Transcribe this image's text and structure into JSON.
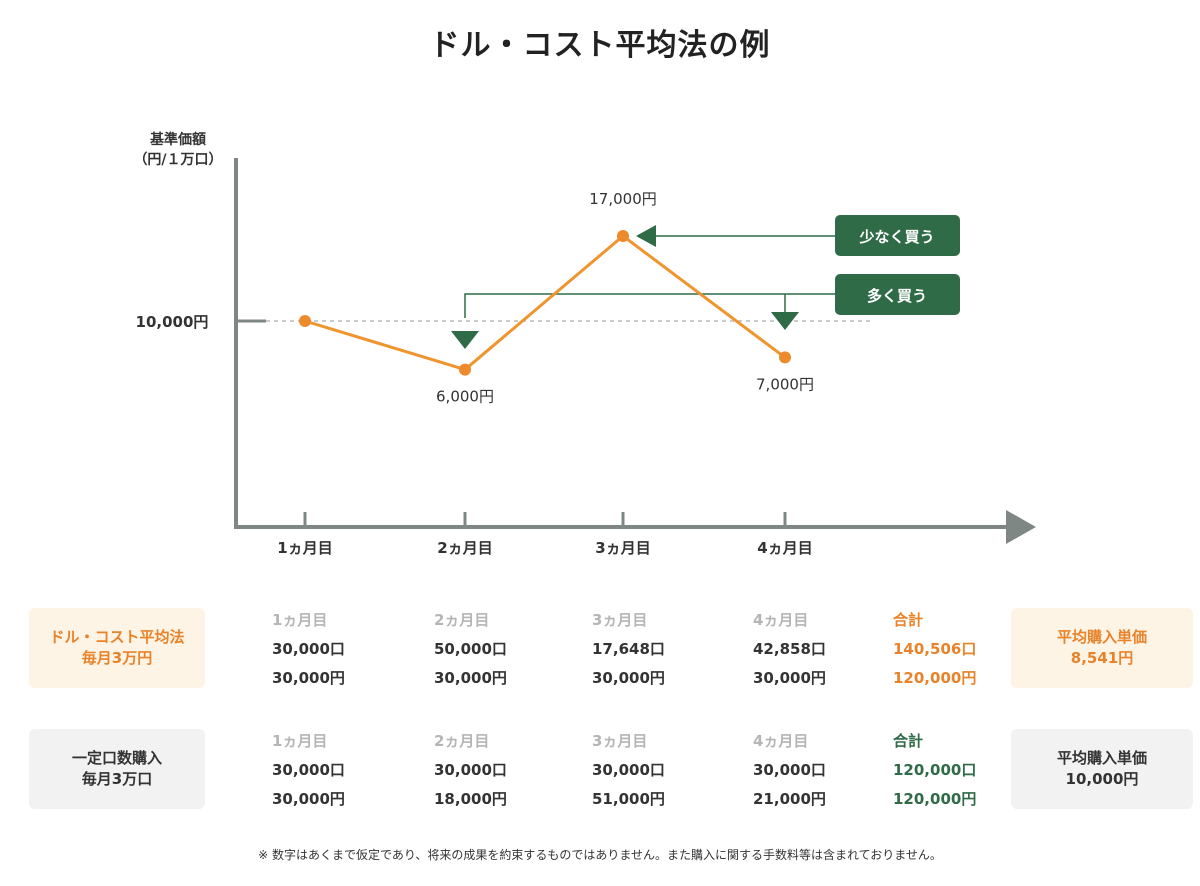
{
  "title": "ドル・コスト平均法の例",
  "chart_data": {
    "type": "line",
    "ylabel_lines": [
      "基準価額",
      "（円/１万口）"
    ],
    "categories": [
      "1ヵ月目",
      "2ヵ月目",
      "3ヵ月目",
      "4ヵ月目"
    ],
    "values": [
      10000,
      6000,
      17000,
      7000
    ],
    "reference_line": {
      "value": 10000,
      "label": "10,000円"
    },
    "point_labels": [
      "",
      "6,000円",
      "17,000円",
      "7,000円"
    ],
    "annotations": [
      {
        "label": "少なく買う",
        "targets": [
          "3ヵ月目"
        ]
      },
      {
        "label": "多く買う",
        "targets": [
          "2ヵ月目",
          "4ヵ月目"
        ]
      }
    ],
    "colors": {
      "line": "#f0942e",
      "point": "#ec8a2c",
      "axis": "#7f8784",
      "annotation": "#2f6b47",
      "reference": "#b9b9b9"
    }
  },
  "table": {
    "month_headers": [
      "1ヵ月目",
      "2ヵ月目",
      "3ヵ月目",
      "4ヵ月目"
    ],
    "total_header": "合計",
    "avg_title": "平均購入単価",
    "rows": [
      {
        "label_lines": [
          "ドル・コスト平均法",
          "毎月3万円"
        ],
        "units": [
          "30,000口",
          "50,000口",
          "17,648口",
          "42,858口"
        ],
        "amounts": [
          "30,000円",
          "30,000円",
          "30,000円",
          "30,000円"
        ],
        "total_units": "140,506口",
        "total_amount": "120,000円",
        "avg_price": "8,541円"
      },
      {
        "label_lines": [
          "一定口数購入",
          "毎月3万口"
        ],
        "units": [
          "30,000口",
          "30,000口",
          "30,000口",
          "30,000口"
        ],
        "amounts": [
          "30,000円",
          "18,000円",
          "51,000円",
          "21,000円"
        ],
        "total_units": "120,000口",
        "total_amount": "120,000円",
        "avg_price": "10,000円"
      }
    ]
  },
  "note": "※ 数字はあくまで仮定であり、将来の成果を約束するものではありません。また購入に関する手数料等は含まれておりません。"
}
